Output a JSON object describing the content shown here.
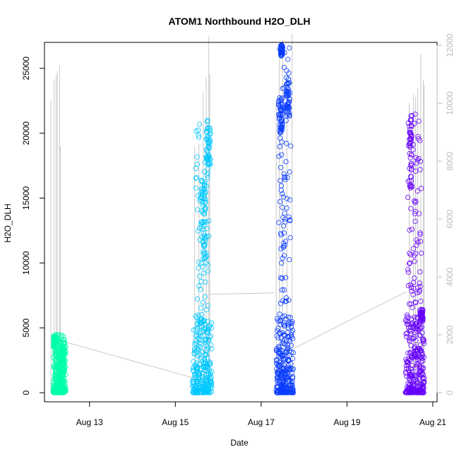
{
  "chart_data": {
    "type": "scatter",
    "title": "ATOM1 Northbound H2O_DLH",
    "xlabel": "Date",
    "ylabel": "H2O_DLH",
    "x_ticks": [
      {
        "label": "Aug 13",
        "value": 13
      },
      {
        "label": "Aug 15",
        "value": 15
      },
      {
        "label": "Aug 17",
        "value": 17
      },
      {
        "label": "Aug 19",
        "value": 19
      },
      {
        "label": "Aug 21",
        "value": 21
      }
    ],
    "y_ticks": [
      "0",
      "5000",
      "10000",
      "15000",
      "20000",
      "25000"
    ],
    "y2_ticks": [
      "0",
      "2000",
      "4000",
      "6000",
      "8000",
      "10000",
      "12000"
    ],
    "xlim": [
      11.95,
      21.1
    ],
    "ylim": [
      -700,
      27000
    ],
    "y2lim": [
      -313,
      12100
    ],
    "grid": false,
    "colors": {
      "series": [
        "#00ffaa",
        "#00c8ff",
        "#0a3cff",
        "#6600ff"
      ],
      "secondary_line": "#c8c8c8",
      "axis": "#000000",
      "right_axis": "#bdbdbd"
    },
    "series": [
      {
        "x_range": [
          12.15,
          12.45
        ],
        "y_range": [
          0,
          4500
        ],
        "clusters": [
          {
            "x_range": [
              12.16,
              12.2
            ],
            "y_range": [
              3500,
              4500
            ]
          },
          {
            "x_range": [
              12.35,
              12.42
            ],
            "y_range": [
              1500,
              3800
            ]
          }
        ]
      },
      {
        "x_range": [
          15.4,
          15.85
        ],
        "y_range": [
          0,
          21000
        ],
        "clusters": [
          {
            "x_range": [
              15.6,
              15.72
            ],
            "y_range": [
              10500,
              16500
            ]
          },
          {
            "x_range": [
              15.72,
              15.82
            ],
            "y_range": [
              17500,
              21000
            ]
          }
        ]
      },
      {
        "x_range": [
          17.35,
          17.75
        ],
        "y_range": [
          0,
          26800
        ],
        "clusters": [
          {
            "x_range": [
              17.4,
              17.5
            ],
            "y_range": [
              20000,
              22800
            ]
          },
          {
            "x_range": [
              17.45,
              17.5
            ],
            "y_range": [
              26000,
              26800
            ]
          },
          {
            "x_range": [
              17.58,
              17.66
            ],
            "y_range": [
              21000,
              24300
            ]
          }
        ]
      },
      {
        "x_range": [
          20.35,
          20.8
        ],
        "y_range": [
          0,
          21500
        ],
        "clusters": [
          {
            "x_range": [
              20.45,
              20.52
            ],
            "y_range": [
              15500,
              21400
            ]
          },
          {
            "x_range": [
              20.7,
              20.77
            ],
            "y_range": [
              5500,
              6500
            ]
          }
        ]
      }
    ],
    "secondary_series": {
      "axis": "right",
      "spikes": [
        [
          12.1,
          10100
        ],
        [
          12.17,
          10800
        ],
        [
          12.22,
          11000
        ],
        [
          12.25,
          11100
        ],
        [
          12.3,
          11300
        ],
        [
          12.32,
          8500
        ],
        [
          15.45,
          8500
        ],
        [
          15.55,
          8600
        ],
        [
          15.65,
          10400
        ],
        [
          15.72,
          10900
        ],
        [
          15.78,
          12300
        ],
        [
          15.8,
          11000
        ],
        [
          17.35,
          10000
        ],
        [
          17.42,
          11800
        ],
        [
          17.5,
          12200
        ],
        [
          17.6,
          10600
        ],
        [
          17.72,
          12400
        ],
        [
          20.45,
          10000
        ],
        [
          20.55,
          10300
        ],
        [
          20.6,
          10200
        ],
        [
          20.65,
          10500
        ],
        [
          20.72,
          11700
        ],
        [
          20.78,
          10800
        ],
        [
          20.8,
          10600
        ]
      ],
      "connectors": [
        [
          [
            12.32,
            1800
          ],
          [
            15.45,
            500
          ]
        ],
        [
          [
            15.8,
            3400
          ],
          [
            17.3,
            3450
          ]
        ],
        [
          [
            17.72,
            1500
          ],
          [
            20.4,
            3500
          ]
        ]
      ]
    }
  }
}
